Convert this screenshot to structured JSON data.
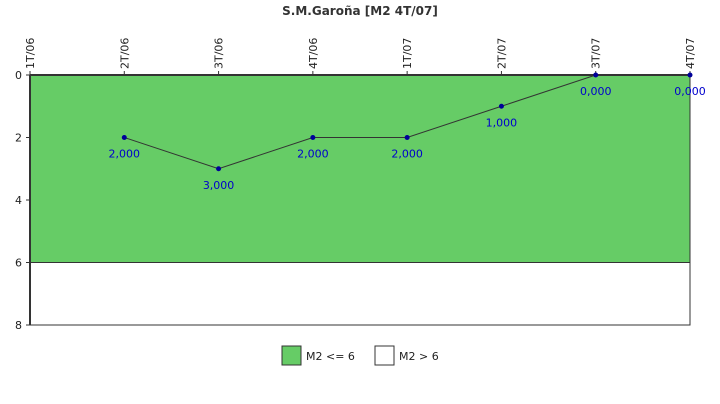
{
  "chart_data": {
    "type": "line",
    "title": "S.M.Garoña [M2 4T/07]",
    "x": [
      "1T/06",
      "2T/06",
      "3T/06",
      "4T/06",
      "1T/07",
      "2T/07",
      "3T/07",
      "4T/07"
    ],
    "series": [
      {
        "values": [
          null,
          2,
          3,
          2,
          2,
          1,
          0,
          0
        ],
        "labels": [
          "",
          "2,000",
          "3,000",
          "2,000",
          "2,000",
          "1,000",
          "0,000",
          "0,000"
        ]
      }
    ],
    "y_axis": {
      "min": 0,
      "max": 8,
      "inverted": true,
      "ticks": [
        "0",
        "2",
        "4",
        "6",
        "8"
      ]
    },
    "bands": [
      {
        "name": "M2 <= 6",
        "from": 0,
        "to": 6,
        "color": "#66cc66"
      },
      {
        "name": "M2 > 6",
        "from": 6,
        "to": 8,
        "color": "#ffffff"
      }
    ],
    "colors": {
      "line": "#333333",
      "marker": "#000099",
      "label": "#0000cc"
    },
    "legend": "bottom-center",
    "grid": false
  }
}
